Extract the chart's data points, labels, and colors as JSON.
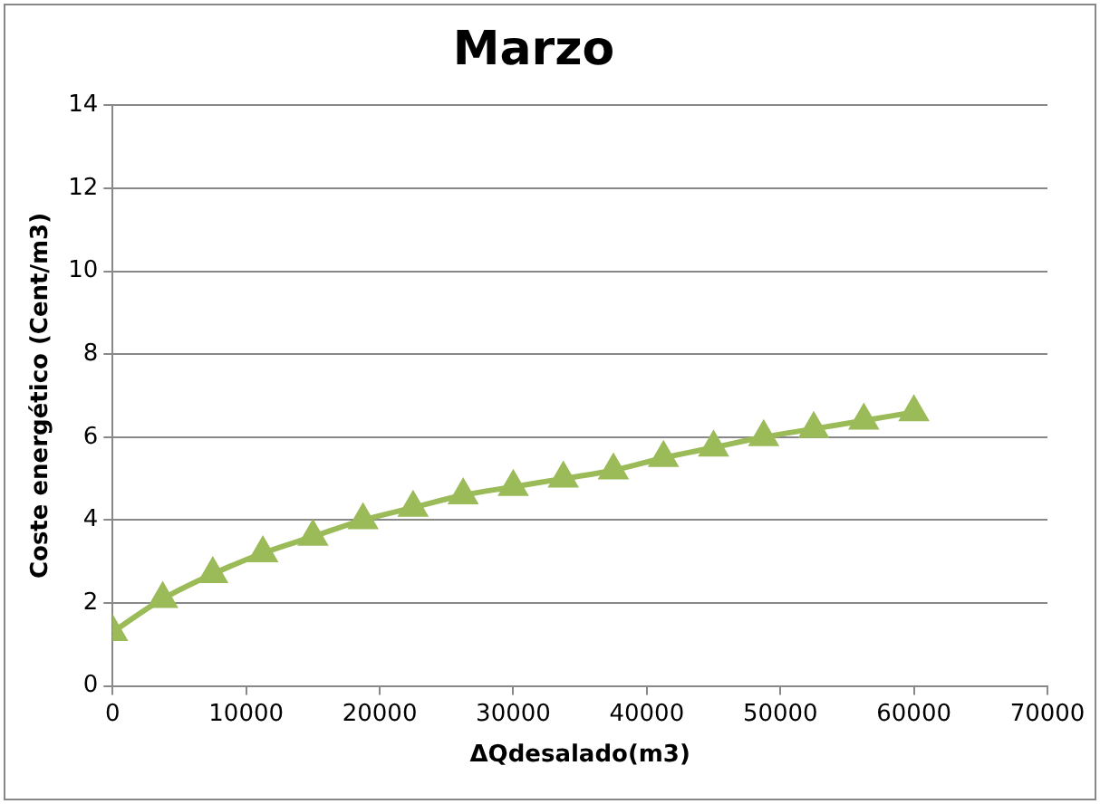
{
  "chart_data": {
    "type": "line",
    "title": "Marzo",
    "xlabel": "ΔQdesalado(m3)",
    "ylabel": "Coste energético (Cent/m3)",
    "x": [
      0,
      3750,
      7500,
      11250,
      15000,
      18750,
      22500,
      26250,
      30000,
      33750,
      37500,
      41250,
      45000,
      48750,
      52500,
      56250,
      60000
    ],
    "series": [
      {
        "color": "#9bbb59",
        "values": [
          1.3,
          2.1,
          2.7,
          3.2,
          3.6,
          4.0,
          4.3,
          4.6,
          4.8,
          5.0,
          5.2,
          5.5,
          5.75,
          6.0,
          6.2,
          6.4,
          6.6
        ]
      }
    ],
    "xlim": [
      0,
      70000
    ],
    "xticks": [
      0,
      10000,
      20000,
      30000,
      40000,
      50000,
      60000,
      70000
    ],
    "ylim": [
      0,
      14
    ],
    "yticks": [
      0,
      2,
      4,
      6,
      8,
      10,
      12,
      14
    ],
    "grid": "y",
    "legend": false,
    "marker": "triangle",
    "line_style": "solid"
  }
}
